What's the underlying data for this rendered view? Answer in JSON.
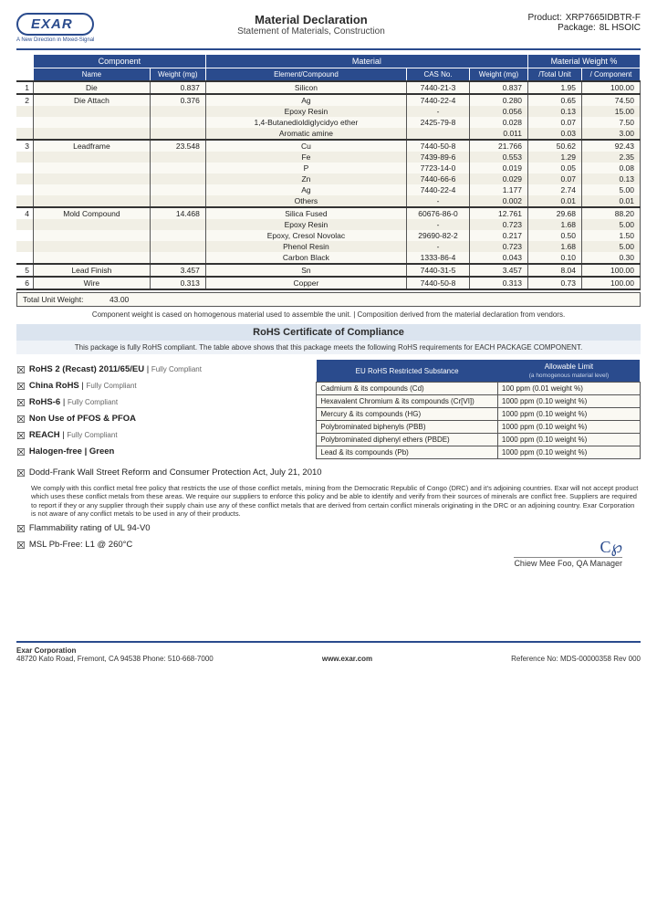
{
  "header": {
    "logo": "EXAR",
    "tag": "A New Direction in Mixed-Signal",
    "title": "Material Declaration",
    "sub": "Statement of Materials, Construction",
    "product_lab": "Product:",
    "product": "XRP7665IDBTR-F",
    "package_lab": "Package:",
    "package": "8L HSOIC"
  },
  "th": {
    "comp": "Component",
    "name": "Name",
    "wt": "Weight (mg)",
    "mat": "Material",
    "elem": "Element/Compound",
    "cas": "CAS No.",
    "wmg": "Weight (mg)",
    "mwp": "Material Weight %",
    "tu": "/Total Unit",
    "co": "/ Component"
  },
  "rows": [
    {
      "i": "1",
      "n": "Die",
      "w": "0.837",
      "e": "Silicon",
      "c": "7440-21-3",
      "m": "0.837",
      "t": "1.95",
      "p": "100.00",
      "div": true
    },
    {
      "i": "2",
      "n": "Die Attach",
      "w": "0.376",
      "e": "Ag",
      "c": "7440-22-4",
      "m": "0.280",
      "t": "0.65",
      "p": "74.50",
      "div": true
    },
    {
      "e": "Epoxy Resin",
      "c": "-",
      "m": "0.056",
      "t": "0.13",
      "p": "15.00",
      "alt": true
    },
    {
      "e": "1,4-Butanedioldiglycidyo ether",
      "c": "2425-79-8",
      "m": "0.028",
      "t": "0.07",
      "p": "7.50"
    },
    {
      "e": "Aromatic amine",
      "c": "",
      "m": "0.011",
      "t": "0.03",
      "p": "3.00",
      "alt": true
    },
    {
      "i": "3",
      "n": "Leadframe",
      "w": "23.548",
      "e": "Cu",
      "c": "7440-50-8",
      "m": "21.766",
      "t": "50.62",
      "p": "92.43",
      "div": true
    },
    {
      "e": "Fe",
      "c": "7439-89-6",
      "m": "0.553",
      "t": "1.29",
      "p": "2.35",
      "alt": true
    },
    {
      "e": "P",
      "c": "7723-14-0",
      "m": "0.019",
      "t": "0.05",
      "p": "0.08"
    },
    {
      "e": "Zn",
      "c": "7440-66-6",
      "m": "0.029",
      "t": "0.07",
      "p": "0.13",
      "alt": true
    },
    {
      "e": "Ag",
      "c": "7440-22-4",
      "m": "1.177",
      "t": "2.74",
      "p": "5.00"
    },
    {
      "e": "Others",
      "c": "-",
      "m": "0.002",
      "t": "0.01",
      "p": "0.01",
      "alt": true
    },
    {
      "i": "4",
      "n": "Mold Compound",
      "w": "14.468",
      "e": "Silica Fused",
      "c": "60676-86-0",
      "m": "12.761",
      "t": "29.68",
      "p": "88.20",
      "div": true
    },
    {
      "e": "Epoxy Resin",
      "c": "-",
      "m": "0.723",
      "t": "1.68",
      "p": "5.00",
      "alt": true
    },
    {
      "e": "Epoxy, Cresol Novolac",
      "c": "29690-82-2",
      "m": "0.217",
      "t": "0.50",
      "p": "1.50"
    },
    {
      "e": "Phenol Resin",
      "c": "-",
      "m": "0.723",
      "t": "1.68",
      "p": "5.00",
      "alt": true
    },
    {
      "e": "Carbon Black",
      "c": "1333-86-4",
      "m": "0.043",
      "t": "0.10",
      "p": "0.30"
    },
    {
      "i": "5",
      "n": "Lead Finish",
      "w": "3.457",
      "e": "Sn",
      "c": "7440-31-5",
      "m": "3.457",
      "t": "8.04",
      "p": "100.00",
      "div": true
    },
    {
      "i": "6",
      "n": "Wire",
      "w": "0.313",
      "e": "Copper",
      "c": "7440-50-8",
      "m": "0.313",
      "t": "0.73",
      "p": "100.00",
      "div": true,
      "last": true
    }
  ],
  "total": {
    "l": "Total Unit Weight:",
    "v": "43.00"
  },
  "tnote": "Component weight is cased on homogenous material used to assemble the unit. | Composition derived from the material declaration from vendors.",
  "rohs": {
    "h": "RoHS Certificate of Compliance",
    "s": "This package is fully RoHS compliant.   The table above shows that this package meets the following RoHS requirements for EACH PACKAGE COMPONENT."
  },
  "checks": [
    {
      "b": "RoHS 2 (Recast) 2011/65/EU",
      "a": " | ",
      "f": "Fully Compliant"
    },
    {
      "b": "China RoHS",
      "a": " | ",
      "f": "Fully Compliant"
    },
    {
      "b": "RoHS-6",
      "a": " | ",
      "f": "Fully Compliant"
    },
    {
      "b": "Non Use of PFOS & PFOA"
    },
    {
      "b": "REACH",
      "a": " | ",
      "f": "Fully Compliant"
    },
    {
      "b": "Halogen-free | Green"
    }
  ],
  "subth": {
    "a": "EU RoHS Restricted Substance",
    "b": "Allowable Limit",
    "bs": "(a homogenous material level)"
  },
  "subs": [
    [
      "Cadmium & its compounds (Cd)",
      "100 ppm (0.01 weight %)"
    ],
    [
      "Hexavalent Chromium & its compounds (Cr[VI])",
      "1000 ppm (0.10 weight %)"
    ],
    [
      "Mercury & its compounds (HG)",
      "1000 ppm (0.10 weight %)"
    ],
    [
      "Polybrominated biphenyls (PBB)",
      "1000 ppm (0.10 weight %)"
    ],
    [
      "Polybrominated diphenyl ethers (PBDE)",
      "1000 ppm (0.10 weight %)"
    ],
    [
      "Lead & its compounds (Pb)",
      "1000 ppm (0.10 weight %)"
    ]
  ],
  "dodd": {
    "t": "Dodd-Frank Wall Street Reform and Consumer Protection Act, July 21, 2010",
    "p": "We comply with this conflict metal free policy that restricts the use of those conflict metals, mining from the Democratic Republic of Congo (DRC) and it's adjoining countries.  Exar will not accept product which uses these conflict metals from these areas.  We require our suppliers to enforce this policy and be able to identify and verify from their sources of minerals are conflict free.  Suppliers are required to report if they or any supplier through their supply chain use any of these conflict metals that are derived from certain conflict minerals originating in the DRC or an adjoining country.  Exar Corporation is not aware of any conflict metals to be used in any of their products."
  },
  "extra": [
    "Flammability rating of UL 94-V0",
    "MSL Pb-Free:  L1 @ 260°C"
  ],
  "sig": {
    "name": "Chiew Mee Foo, QA Manager"
  },
  "foot": {
    "corp": "Exar Corporation",
    "addr": "48720 Kato Road, Fremont, CA 94538  Phone:  510-668-7000",
    "url": "www.exar.com",
    "ref": "Reference No: MDS-00000358 Rev 000"
  }
}
